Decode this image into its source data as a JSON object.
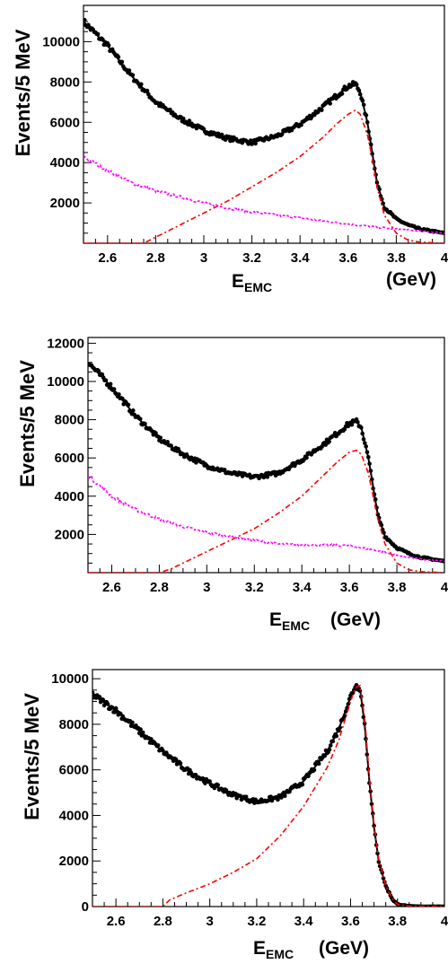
{
  "chart_data": [
    {
      "type": "line",
      "ylabel": "Events/5 MeV",
      "xlabel_main": "E",
      "xlabel_sub": "EMC",
      "xlabel_unit": "(GeV)",
      "xlim": [
        2.5,
        4.0
      ],
      "ylim": [
        0,
        11800
      ],
      "xticks": [
        2.6,
        2.8,
        3.0,
        3.2,
        3.4,
        3.6,
        3.8,
        4.0
      ],
      "xtick_labels": [
        "2.6",
        "2.8",
        "3",
        "3.2",
        "3.4",
        "3.6",
        "3.8",
        "4"
      ],
      "yticks": [
        2000,
        4000,
        6000,
        8000,
        10000
      ],
      "ytick_labels": [
        "2000",
        "4000",
        "6000",
        "8000",
        "10000"
      ],
      "colors": {
        "data": "#000000",
        "signal": "#ff0000",
        "background": "#ff00ff"
      },
      "series": [
        {
          "role": "data",
          "x": [
            2.5,
            2.6,
            2.7,
            2.8,
            2.9,
            3.0,
            3.1,
            3.2,
            3.3,
            3.4,
            3.5,
            3.55,
            3.6,
            3.63,
            3.65,
            3.68,
            3.7,
            3.72,
            3.75,
            3.8,
            3.85,
            3.9,
            4.0
          ],
          "y": [
            11000,
            9800,
            8300,
            7000,
            6200,
            5600,
            5200,
            5000,
            5300,
            5900,
            6800,
            7300,
            7800,
            7900,
            7500,
            6000,
            4500,
            3000,
            1800,
            1200,
            900,
            700,
            500
          ]
        },
        {
          "role": "signal",
          "x": [
            2.5,
            2.75,
            2.8,
            2.9,
            3.0,
            3.1,
            3.2,
            3.3,
            3.4,
            3.5,
            3.55,
            3.6,
            3.63,
            3.65,
            3.68,
            3.7,
            3.72,
            3.75,
            3.8,
            3.85,
            3.9,
            4.0
          ],
          "y": [
            0,
            0,
            300,
            900,
            1500,
            2100,
            2800,
            3500,
            4300,
            5300,
            5900,
            6400,
            6600,
            6400,
            5400,
            4200,
            2800,
            1400,
            500,
            150,
            50,
            0
          ]
        },
        {
          "role": "background",
          "x": [
            2.5,
            2.6,
            2.7,
            2.8,
            2.9,
            3.0,
            3.1,
            3.2,
            3.3,
            3.4,
            3.5,
            3.6,
            3.7,
            3.8,
            3.9,
            4.0
          ],
          "y": [
            4300,
            3600,
            3000,
            2600,
            2300,
            2000,
            1750,
            1550,
            1400,
            1250,
            1100,
            950,
            820,
            700,
            600,
            500
          ]
        }
      ]
    },
    {
      "type": "line",
      "ylabel": "Events/5 MeV",
      "xlabel_main": "E",
      "xlabel_sub": "EMC",
      "xlabel_unit": "(GeV)",
      "xlim": [
        2.5,
        4.0
      ],
      "ylim": [
        0,
        12300
      ],
      "xticks": [
        2.6,
        2.8,
        3.0,
        3.2,
        3.4,
        3.6,
        3.8,
        4.0
      ],
      "xtick_labels": [
        "2.6",
        "2.8",
        "3",
        "3.2",
        "3.4",
        "3.6",
        "3.8",
        "4"
      ],
      "yticks": [
        2000,
        4000,
        6000,
        8000,
        10000,
        12000
      ],
      "ytick_labels": [
        "2000",
        "4000",
        "6000",
        "8000",
        "10000",
        "12000"
      ],
      "colors": {
        "data": "#000000",
        "signal": "#ff0000",
        "background": "#ff00ff"
      },
      "series": [
        {
          "role": "data",
          "x": [
            2.5,
            2.6,
            2.7,
            2.8,
            2.9,
            3.0,
            3.1,
            3.2,
            3.3,
            3.4,
            3.5,
            3.55,
            3.6,
            3.63,
            3.65,
            3.68,
            3.7,
            3.72,
            3.75,
            3.8,
            3.85,
            3.9,
            4.0
          ],
          "y": [
            11000,
            9700,
            8200,
            7000,
            6200,
            5600,
            5200,
            5000,
            5200,
            5900,
            6800,
            7300,
            7800,
            7900,
            7600,
            6000,
            4500,
            3000,
            1900,
            1300,
            1000,
            800,
            600
          ]
        },
        {
          "role": "signal",
          "x": [
            2.5,
            2.8,
            2.85,
            2.9,
            3.0,
            3.1,
            3.2,
            3.3,
            3.4,
            3.5,
            3.55,
            3.6,
            3.63,
            3.65,
            3.68,
            3.7,
            3.72,
            3.75,
            3.8,
            3.85,
            3.9,
            4.0
          ],
          "y": [
            0,
            0,
            200,
            500,
            1100,
            1700,
            2300,
            3100,
            4000,
            5200,
            5800,
            6300,
            6400,
            6200,
            5200,
            4000,
            2800,
            1500,
            500,
            150,
            50,
            0
          ]
        },
        {
          "role": "background",
          "x": [
            2.5,
            2.6,
            2.7,
            2.8,
            2.9,
            3.0,
            3.1,
            3.2,
            3.3,
            3.4,
            3.5,
            3.6,
            3.7,
            3.8,
            3.9,
            4.0
          ],
          "y": [
            5100,
            4000,
            3300,
            2800,
            2400,
            2100,
            1900,
            1700,
            1500,
            1450,
            1450,
            1400,
            1200,
            900,
            700,
            600
          ]
        }
      ]
    },
    {
      "type": "line",
      "ylabel": "Events/5 MeV",
      "xlabel_main": "E",
      "xlabel_sub": "EMC",
      "xlabel_unit": "(GeV)",
      "xlim": [
        2.5,
        4.0
      ],
      "ylim": [
        0,
        10400
      ],
      "xticks": [
        2.6,
        2.8,
        3.0,
        3.2,
        3.4,
        3.6,
        3.8,
        4.0
      ],
      "xtick_labels": [
        "2.6",
        "2.8",
        "3",
        "3.2",
        "3.4",
        "3.6",
        "3.8",
        "4"
      ],
      "yticks": [
        0,
        2000,
        4000,
        6000,
        8000,
        10000
      ],
      "ytick_labels": [
        "0",
        "2000",
        "4000",
        "6000",
        "8000",
        "10000"
      ],
      "colors": {
        "data": "#000000",
        "signal": "#ff0000"
      },
      "series": [
        {
          "role": "data",
          "x": [
            2.5,
            2.6,
            2.7,
            2.8,
            2.9,
            3.0,
            3.1,
            3.2,
            3.3,
            3.4,
            3.5,
            3.55,
            3.6,
            3.62,
            3.64,
            3.66,
            3.68,
            3.7,
            3.72,
            3.75,
            3.78,
            3.8,
            3.85,
            3.9,
            4.0
          ],
          "y": [
            9300,
            8600,
            7700,
            6800,
            6000,
            5400,
            4900,
            4600,
            4800,
            5500,
            6800,
            7800,
            9200,
            9700,
            9600,
            8000,
            5500,
            3500,
            2000,
            900,
            300,
            100,
            20,
            0,
            0
          ]
        },
        {
          "role": "signal",
          "x": [
            2.5,
            2.8,
            2.83,
            2.9,
            3.0,
            3.1,
            3.2,
            3.3,
            3.4,
            3.5,
            3.55,
            3.6,
            3.62,
            3.64,
            3.66,
            3.68,
            3.7,
            3.72,
            3.75,
            3.78,
            3.8,
            3.85,
            4.0
          ],
          "y": [
            0,
            0,
            300,
            600,
            1000,
            1500,
            2100,
            3100,
            4400,
            6100,
            7300,
            9000,
            9600,
            9700,
            8300,
            5700,
            3600,
            2100,
            900,
            300,
            100,
            20,
            0
          ]
        }
      ]
    }
  ]
}
